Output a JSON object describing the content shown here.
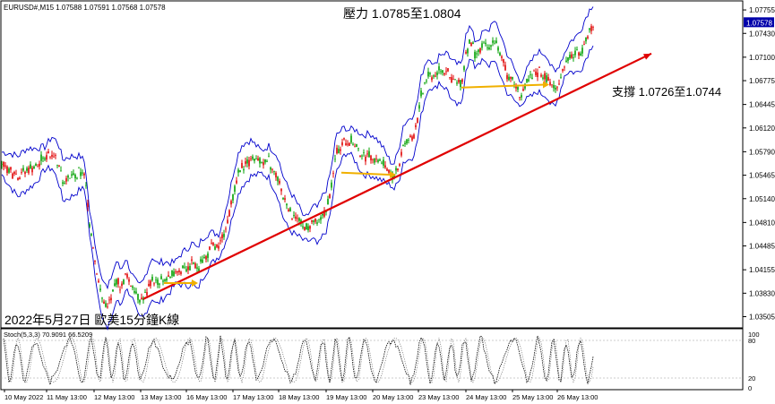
{
  "chart_data": {
    "type": "line",
    "symbol_header": "EURUSD#,M15  1.07588 1.07591 1.07568 1.07578",
    "title": "2022年5月27日 歐美15分鐘K線",
    "resistance_label": "壓力 1.0785至1.0804",
    "support_label": "支撐 1.0726至1.0744",
    "current_price": "1.07578",
    "y_ticks": [
      "1.07755",
      "1.07430",
      "1.07100",
      "1.06775",
      "1.06445",
      "1.06120",
      "1.05790",
      "1.05465",
      "1.05140",
      "1.04810",
      "1.04485",
      "1.04155",
      "1.03830",
      "1.03505"
    ],
    "ylim": [
      1.0335,
      1.0788
    ],
    "x_ticks": [
      "10 May 2022",
      "11 May 13:00",
      "12 May 13:00",
      "13 May 13:00",
      "16 May 13:00",
      "17 May 13:00",
      "18 May 13:00",
      "19 May 13:00",
      "20 May 13:00",
      "23 May 13:00",
      "24 May 13:00",
      "25 May 13:00",
      "26 May 13:00"
    ],
    "price_path": [
      [
        0,
        1.0565
      ],
      [
        10,
        1.0555
      ],
      [
        20,
        1.0545
      ],
      [
        30,
        1.0555
      ],
      [
        40,
        1.056
      ],
      [
        50,
        1.057
      ],
      [
        58,
        1.0578
      ],
      [
        65,
        1.0565
      ],
      [
        70,
        1.054
      ],
      [
        80,
        1.0545
      ],
      [
        90,
        1.055
      ],
      [
        95,
        1.0545
      ],
      [
        100,
        1.048
      ],
      [
        105,
        1.044
      ],
      [
        110,
        1.04
      ],
      [
        115,
        1.0375
      ],
      [
        120,
        1.036
      ],
      [
        125,
        1.038
      ],
      [
        130,
        1.04
      ],
      [
        135,
        1.039
      ],
      [
        140,
        1.041
      ],
      [
        145,
        1.04
      ],
      [
        150,
        1.0385
      ],
      [
        155,
        1.037
      ],
      [
        160,
        1.0375
      ],
      [
        165,
        1.039
      ],
      [
        170,
        1.0405
      ],
      [
        175,
        1.0395
      ],
      [
        180,
        1.04
      ],
      [
        190,
        1.0405
      ],
      [
        200,
        1.0415
      ],
      [
        210,
        1.042
      ],
      [
        215,
        1.0425
      ],
      [
        220,
        1.0415
      ],
      [
        225,
        1.043
      ],
      [
        235,
        1.0445
      ],
      [
        245,
        1.045
      ],
      [
        250,
        1.047
      ],
      [
        255,
        1.049
      ],
      [
        260,
        1.052
      ],
      [
        265,
        1.0545
      ],
      [
        270,
        1.056
      ],
      [
        280,
        1.057
      ],
      [
        290,
        1.0565
      ],
      [
        300,
        1.0565
      ],
      [
        310,
        1.0545
      ],
      [
        315,
        1.052
      ],
      [
        320,
        1.0505
      ],
      [
        325,
        1.0495
      ],
      [
        335,
        1.048
      ],
      [
        340,
        1.047
      ],
      [
        350,
        1.048
      ],
      [
        355,
        1.0475
      ],
      [
        360,
        1.049
      ],
      [
        365,
        1.05
      ],
      [
        370,
        1.053
      ],
      [
        375,
        1.0575
      ],
      [
        385,
        1.0595
      ],
      [
        395,
        1.059
      ],
      [
        405,
        1.0575
      ],
      [
        415,
        1.0575
      ],
      [
        425,
        1.0565
      ],
      [
        435,
        1.055
      ],
      [
        440,
        1.0545
      ],
      [
        445,
        1.056
      ],
      [
        450,
        1.059
      ],
      [
        460,
        1.06
      ],
      [
        465,
        1.0615
      ],
      [
        470,
        1.0655
      ],
      [
        475,
        1.068
      ],
      [
        480,
        1.069
      ],
      [
        485,
        1.068
      ],
      [
        490,
        1.0695
      ],
      [
        500,
        1.069
      ],
      [
        505,
        1.0675
      ],
      [
        515,
        1.067
      ],
      [
        520,
        1.072
      ],
      [
        525,
        1.073
      ],
      [
        530,
        1.0715
      ],
      [
        540,
        1.0725
      ],
      [
        545,
        1.072
      ],
      [
        550,
        1.0735
      ],
      [
        560,
        1.071
      ],
      [
        565,
        1.069
      ],
      [
        575,
        1.067
      ],
      [
        580,
        1.066
      ],
      [
        590,
        1.0675
      ],
      [
        600,
        1.069
      ],
      [
        610,
        1.0685
      ],
      [
        615,
        1.067
      ],
      [
        620,
        1.0665
      ],
      [
        630,
        1.07
      ],
      [
        635,
        1.071
      ],
      [
        645,
        1.0715
      ],
      [
        650,
        1.0725
      ],
      [
        655,
        1.074
      ],
      [
        662,
        1.0757
      ]
    ],
    "band_width": 0.0022,
    "trendline": [
      [
        160,
        1.0375
      ],
      [
        727,
        1.0715
      ]
    ],
    "arrows": [
      {
        "from": [
          183,
          1.0397
        ],
        "to": [
          221,
          1.0397
        ]
      },
      {
        "from": [
          381,
          1.055
        ],
        "to": [
          442,
          1.0547
        ]
      },
      {
        "from": [
          515,
          1.0668
        ],
        "to": [
          613,
          1.0672
        ]
      }
    ],
    "stoch_label": "Stoch(5,3,3) 70.9091 66.5209",
    "stoch_levels": [
      "100",
      "80",
      "20",
      "0"
    ],
    "colors": {
      "candle_up": "#00a000",
      "candle_down": "#e00000",
      "band": "#0000cc",
      "trend": "#e00000",
      "arrow": "#f0b000",
      "stoch": "#000000",
      "current_price_bg": "#0000aa"
    }
  }
}
